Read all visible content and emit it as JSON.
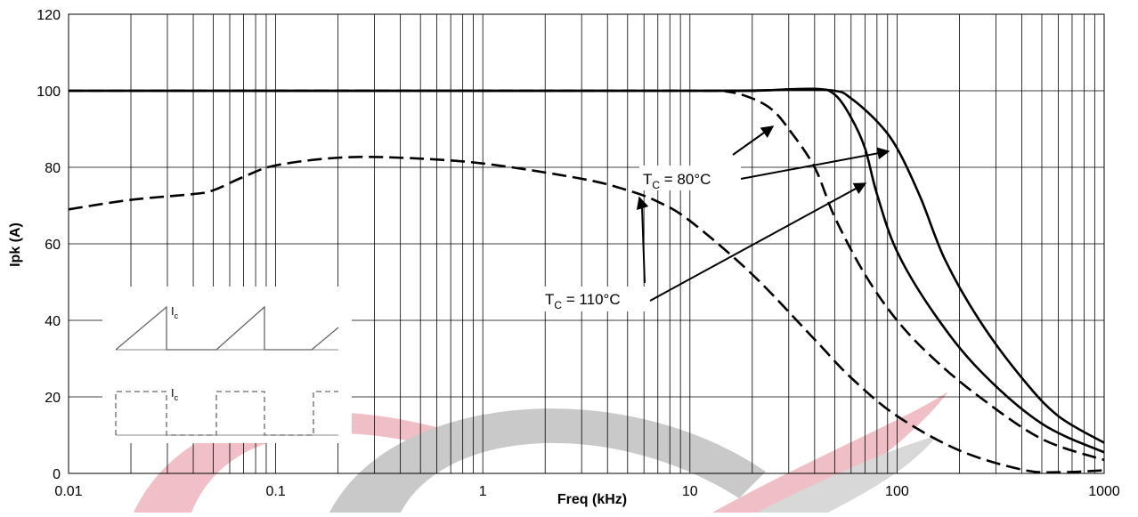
{
  "chart_data": {
    "type": "line",
    "xlabel": "Freq (kHz)",
    "ylabel": "Ipk (A)",
    "xscale": "log",
    "xlim": [
      0.01,
      1000
    ],
    "xticks": [
      0.01,
      0.1,
      1,
      10,
      100,
      1000
    ],
    "ylim": [
      0,
      120
    ],
    "yticks": [
      0,
      20,
      40,
      60,
      80,
      100,
      120
    ],
    "grid": true,
    "minor_grid": true,
    "series": [
      {
        "color": "#000000",
        "dash": "solid",
        "x": [
          0.01,
          10,
          30,
          50,
          60,
          80,
          100,
          130,
          170,
          250,
          400,
          600,
          1000
        ],
        "values": [
          100,
          100,
          100.3,
          100,
          98,
          92,
          85,
          72,
          56,
          40,
          25,
          15,
          8
        ]
      },
      {
        "color": "#000000",
        "dash": "solid",
        "x": [
          0.01,
          10,
          20,
          40,
          50,
          60,
          70,
          80,
          100,
          150,
          250,
          500,
          1000
        ],
        "values": [
          100,
          100,
          100,
          100.5,
          99,
          93,
          85,
          73,
          58,
          42,
          27,
          13,
          5.5
        ]
      },
      {
        "color": "#000000",
        "dash": "dashed",
        "x": [
          0.01,
          10,
          15,
          20,
          25,
          30,
          40,
          50,
          70,
          100,
          150,
          250,
          500,
          1000
        ],
        "values": [
          100,
          100,
          99.8,
          98,
          95,
          90,
          80,
          67,
          52,
          40,
          30,
          20,
          9,
          3.5
        ]
      },
      {
        "color": "#000000",
        "dash": "dashed",
        "x": [
          0.01,
          0.02,
          0.04,
          0.05,
          0.07,
          0.1,
          0.2,
          0.4,
          1,
          3,
          5,
          7,
          10,
          20,
          40,
          60,
          100,
          200,
          400,
          600,
          1000
        ],
        "values": [
          69,
          71.5,
          73,
          74,
          77.5,
          80.5,
          82.5,
          82.5,
          81,
          77,
          74,
          71,
          66,
          52,
          35,
          25,
          15,
          6,
          1,
          0.3,
          0.8
        ]
      }
    ],
    "annotations": [
      {
        "main": "T",
        "sub": "C",
        "rest": " = 80°C"
      },
      {
        "main": "T",
        "sub": "C",
        "rest": " = 110°C"
      }
    ],
    "inset_labels": [
      {
        "main": "I",
        "sub": "c"
      },
      {
        "main": "I",
        "sub": "c"
      }
    ]
  }
}
